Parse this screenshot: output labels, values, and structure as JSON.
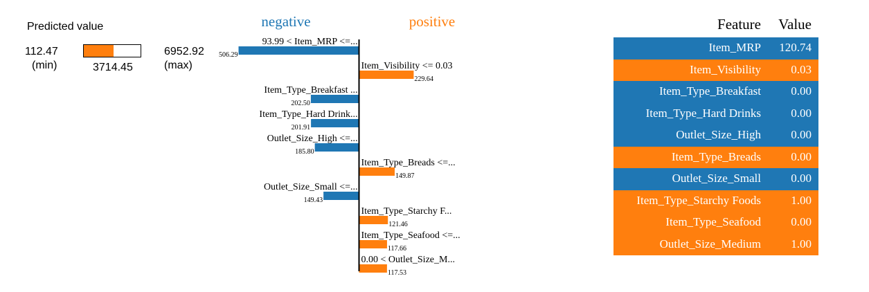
{
  "colors": {
    "negative": "#1f77b4",
    "positive": "#ff7f0e"
  },
  "predicted": {
    "title": "Predicted value",
    "min": "112.47",
    "min_tag": "(min)",
    "max": "6952.92",
    "max_tag": "(max)",
    "value": "3714.45",
    "min_num": 112.47,
    "max_num": 6952.92,
    "value_num": 3714.45
  },
  "chart_data": {
    "type": "bar",
    "orientation": "horizontal",
    "legend_labels": [
      "negative",
      "positive"
    ],
    "bars": [
      {
        "label": "93.99 < Item_MRP <=...",
        "value_label": "506.29",
        "value": 506.29,
        "side": "negative"
      },
      {
        "label": "Item_Visibility <= 0.03",
        "value_label": "229.64",
        "value": 229.64,
        "side": "positive"
      },
      {
        "label": "Item_Type_Breakfast ...",
        "value_label": "202.50",
        "value": 202.5,
        "side": "negative"
      },
      {
        "label": "Item_Type_Hard Drink...",
        "value_label": "201.91",
        "value": 201.91,
        "side": "negative"
      },
      {
        "label": "Outlet_Size_High <=...",
        "value_label": "185.80",
        "value": 185.8,
        "side": "negative"
      },
      {
        "label": "Item_Type_Breads <=...",
        "value_label": "149.87",
        "value": 149.87,
        "side": "positive"
      },
      {
        "label": "Outlet_Size_Small <=...",
        "value_label": "149.43",
        "value": 149.43,
        "side": "negative"
      },
      {
        "label": "Item_Type_Starchy F...",
        "value_label": "121.46",
        "value": 121.46,
        "side": "positive"
      },
      {
        "label": "Item_Type_Seafood <=...",
        "value_label": "117.66",
        "value": 117.66,
        "side": "positive"
      },
      {
        "label": "0.00 < Outlet_Size_M...",
        "value_label": "117.53",
        "value": 117.53,
        "side": "positive"
      }
    ]
  },
  "table": {
    "header_feature": "Feature",
    "header_value": "Value",
    "rows": [
      {
        "feature": "Item_MRP",
        "value": "120.74",
        "side": "negative"
      },
      {
        "feature": "Item_Visibility",
        "value": "0.03",
        "side": "positive"
      },
      {
        "feature": "Item_Type_Breakfast",
        "value": "0.00",
        "side": "negative"
      },
      {
        "feature": "Item_Type_Hard Drinks",
        "value": "0.00",
        "side": "negative"
      },
      {
        "feature": "Outlet_Size_High",
        "value": "0.00",
        "side": "negative"
      },
      {
        "feature": "Item_Type_Breads",
        "value": "0.00",
        "side": "positive"
      },
      {
        "feature": "Outlet_Size_Small",
        "value": "0.00",
        "side": "negative"
      },
      {
        "feature": "Item_Type_Starchy Foods",
        "value": "1.00",
        "side": "positive"
      },
      {
        "feature": "Item_Type_Seafood",
        "value": "0.00",
        "side": "positive"
      },
      {
        "feature": "Outlet_Size_Medium",
        "value": "1.00",
        "side": "positive"
      }
    ]
  }
}
